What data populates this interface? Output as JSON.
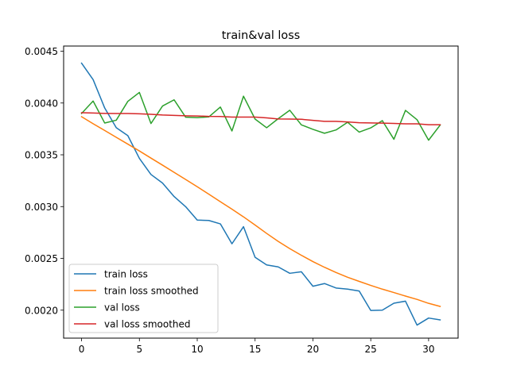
{
  "chart_data": {
    "type": "line",
    "title": "train&val loss",
    "xlabel": "",
    "ylabel": "",
    "xlim": [
      -1.55,
      32.55
    ],
    "ylim": [
      0.00173,
      0.00455
    ],
    "x_ticks": [
      0,
      5,
      10,
      15,
      20,
      25,
      30
    ],
    "y_ticks": [
      0.002,
      0.0025,
      0.003,
      0.0035,
      0.004,
      0.0045
    ],
    "y_tick_labels": [
      "0.0020",
      "0.0025",
      "0.0030",
      "0.0035",
      "0.0040",
      "0.0045"
    ],
    "grid": false,
    "legend_position": "lower-left",
    "x": [
      0,
      1,
      2,
      3,
      4,
      5,
      6,
      7,
      8,
      9,
      10,
      11,
      12,
      13,
      14,
      15,
      16,
      17,
      18,
      19,
      20,
      21,
      22,
      23,
      24,
      25,
      26,
      27,
      28,
      29,
      30,
      31
    ],
    "series": [
      {
        "name": "train loss",
        "color": "#1f77b4",
        "values": [
          0.004385,
          0.004226,
          0.003952,
          0.003762,
          0.003685,
          0.003465,
          0.00331,
          0.003227,
          0.003097,
          0.002999,
          0.00287,
          0.002866,
          0.002833,
          0.002641,
          0.002806,
          0.002511,
          0.002437,
          0.002418,
          0.002356,
          0.002371,
          0.002231,
          0.002257,
          0.002214,
          0.002203,
          0.002185,
          0.001997,
          0.002,
          0.002067,
          0.002087,
          0.001856,
          0.001924,
          0.001906
        ]
      },
      {
        "name": "train loss smoothed",
        "color": "#ff7f0e",
        "values": [
          0.003868,
          0.0038,
          0.003735,
          0.003669,
          0.003603,
          0.003537,
          0.003468,
          0.0034,
          0.003331,
          0.003262,
          0.003192,
          0.00312,
          0.003047,
          0.002975,
          0.002901,
          0.002822,
          0.002741,
          0.002664,
          0.002594,
          0.00253,
          0.002469,
          0.002414,
          0.002364,
          0.002318,
          0.002278,
          0.002239,
          0.002203,
          0.00217,
          0.002136,
          0.002104,
          0.002066,
          0.002036
        ]
      },
      {
        "name": "val loss",
        "color": "#2ca02c",
        "values": [
          0.003899,
          0.004019,
          0.003807,
          0.003834,
          0.004016,
          0.004102,
          0.003802,
          0.003971,
          0.004031,
          0.003863,
          0.003858,
          0.003866,
          0.003961,
          0.00373,
          0.004066,
          0.003845,
          0.003761,
          0.003849,
          0.00393,
          0.003789,
          0.003746,
          0.003708,
          0.00374,
          0.003814,
          0.003719,
          0.00376,
          0.00383,
          0.00365,
          0.003929,
          0.003839,
          0.003641,
          0.003787
        ]
      },
      {
        "name": "val loss smoothed",
        "color": "#d62728",
        "values": [
          0.003906,
          0.003903,
          0.0039,
          0.003899,
          0.003899,
          0.003896,
          0.003891,
          0.003884,
          0.00388,
          0.003877,
          0.003875,
          0.003871,
          0.00387,
          0.003864,
          0.003864,
          0.003864,
          0.003856,
          0.003846,
          0.003845,
          0.003843,
          0.003833,
          0.003823,
          0.003823,
          0.003817,
          0.00381,
          0.003808,
          0.003806,
          0.003803,
          0.003799,
          0.003799,
          0.00379,
          0.00379
        ]
      }
    ]
  }
}
